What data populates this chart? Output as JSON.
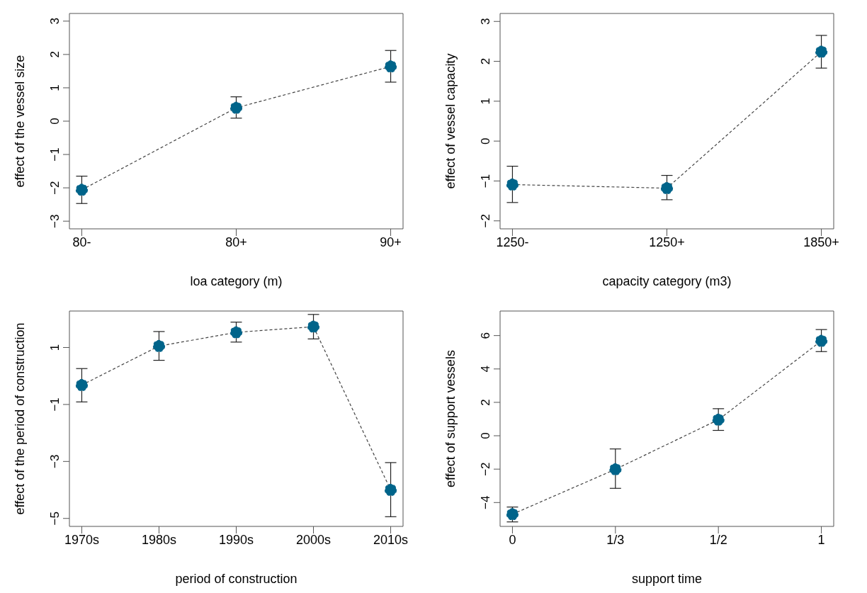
{
  "chart_data": [
    {
      "type": "line",
      "xlabel": "loa category (m)",
      "ylabel": "effect of the vessel size",
      "categories": [
        "80-",
        "80+",
        "90+"
      ],
      "series": [
        {
          "color": "#00648a",
          "values": [
            -2.06,
            0.4,
            1.64
          ],
          "errors": [
            [
              -2.47,
              -1.65
            ],
            [
              0.09,
              0.73
            ],
            [
              1.17,
              2.12
            ]
          ]
        }
      ],
      "ylim": [
        -3.23,
        3.23
      ],
      "yticks": [
        -3,
        -2,
        -1,
        0,
        1,
        2,
        3
      ],
      "grid": false,
      "legend": false,
      "marker": "circle",
      "line_style": "dashed"
    },
    {
      "type": "line",
      "xlabel": "capacity category (m3)",
      "ylabel": "effect of vessel capacity",
      "categories": [
        "1250-",
        "1250+",
        "1850+"
      ],
      "series": [
        {
          "color": "#00648a",
          "values": [
            -1.09,
            -1.18,
            2.24
          ],
          "errors": [
            [
              -1.54,
              -0.63
            ],
            [
              -1.47,
              -0.86
            ],
            [
              1.83,
              2.65
            ]
          ]
        }
      ],
      "ylim": [
        -2.2,
        3.2
      ],
      "yticks": [
        -2,
        -1,
        0,
        1,
        2,
        3
      ],
      "grid": false,
      "legend": false,
      "marker": "circle",
      "line_style": "dashed"
    },
    {
      "type": "line",
      "xlabel": "period of construction",
      "ylabel": "effect of the period of construction",
      "categories": [
        "1970s",
        "1980s",
        "1990s",
        "2000s",
        "2010s"
      ],
      "series": [
        {
          "color": "#00648a",
          "values": [
            -0.32,
            1.05,
            1.53,
            1.73,
            -4.0
          ],
          "errors": [
            [
              -0.91,
              0.26
            ],
            [
              0.55,
              1.56
            ],
            [
              1.19,
              1.89
            ],
            [
              1.3,
              2.16
            ],
            [
              -4.94,
              -3.04
            ]
          ]
        }
      ],
      "ylim": [
        -5.28,
        2.28
      ],
      "yticks": [
        -5,
        -3,
        -1,
        1
      ],
      "grid": false,
      "legend": false,
      "marker": "circle",
      "line_style": "dashed"
    },
    {
      "type": "line",
      "xlabel": "support time",
      "ylabel": "effect of support vessels",
      "categories": [
        "0",
        "1/3",
        "1/2",
        "1"
      ],
      "series": [
        {
          "color": "#00648a",
          "values": [
            -4.7,
            -2.01,
            0.96,
            5.68
          ],
          "errors": [
            [
              -5.16,
              -4.27
            ],
            [
              -3.15,
              -0.79
            ],
            [
              0.32,
              1.62
            ],
            [
              5.04,
              6.36
            ]
          ]
        }
      ],
      "ylim": [
        -5.43,
        7.47
      ],
      "yticks": [
        -4,
        -2,
        0,
        2,
        4,
        6
      ],
      "grid": false,
      "legend": false,
      "marker": "circle",
      "line_style": "dashed"
    }
  ]
}
